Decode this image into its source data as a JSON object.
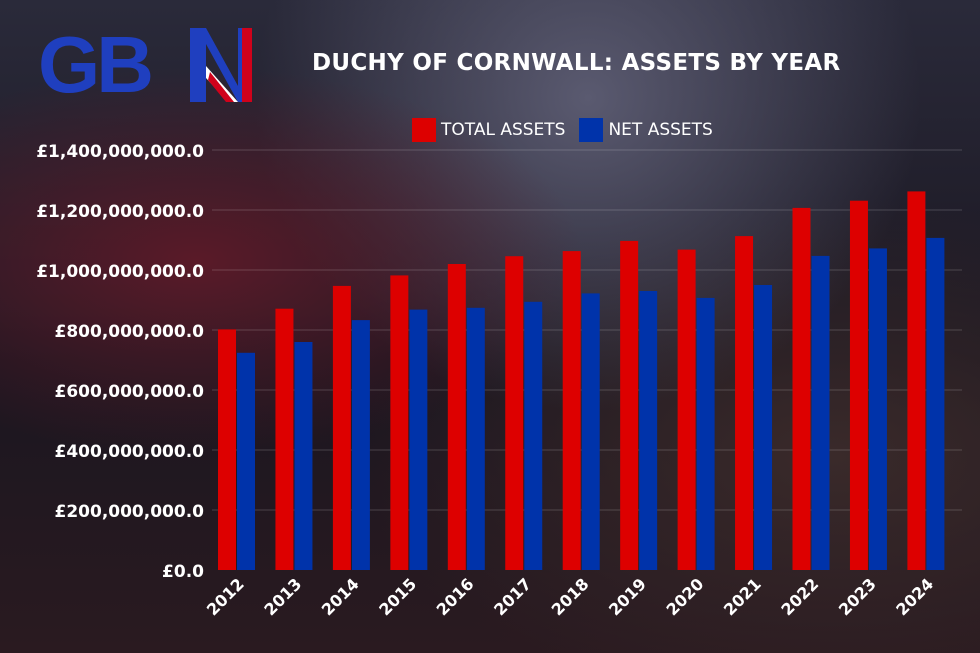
{
  "logo": {
    "text": "GBN"
  },
  "chart_data": {
    "type": "bar",
    "title": "DUCHY OF CORNWALL: ASSETS BY YEAR",
    "categories": [
      "2012",
      "2013",
      "2014",
      "2015",
      "2016",
      "2017",
      "2018",
      "2019",
      "2020",
      "2021",
      "2022",
      "2023",
      "2024"
    ],
    "series": [
      {
        "name": "TOTAL ASSETS",
        "color": "#dd0000",
        "values": [
          802000000,
          871000000,
          947000000,
          982000000,
          1020000000,
          1046000000,
          1063000000,
          1097000000,
          1068000000,
          1113000000,
          1207000000,
          1231000000,
          1262000000
        ]
      },
      {
        "name": "NET ASSETS",
        "color": "#0033aa",
        "values": [
          724000000,
          760000000,
          833000000,
          868000000,
          874000000,
          894000000,
          922000000,
          930000000,
          907000000,
          950000000,
          1047000000,
          1072000000,
          1107000000
        ]
      }
    ],
    "ylim": [
      0,
      1400000000
    ],
    "yticks": [
      0,
      200000000,
      400000000,
      600000000,
      800000000,
      1000000000,
      1200000000,
      1400000000
    ],
    "ytick_labels": [
      "£0.0",
      "£200,000,000.0",
      "£400,000,000.0",
      "£600,000,000.0",
      "£800,000,000.0",
      "£1,000,000,000.0",
      "£1,200,000,000.0",
      "£1,400,000,000.0"
    ],
    "grid": true,
    "legend": "top"
  }
}
